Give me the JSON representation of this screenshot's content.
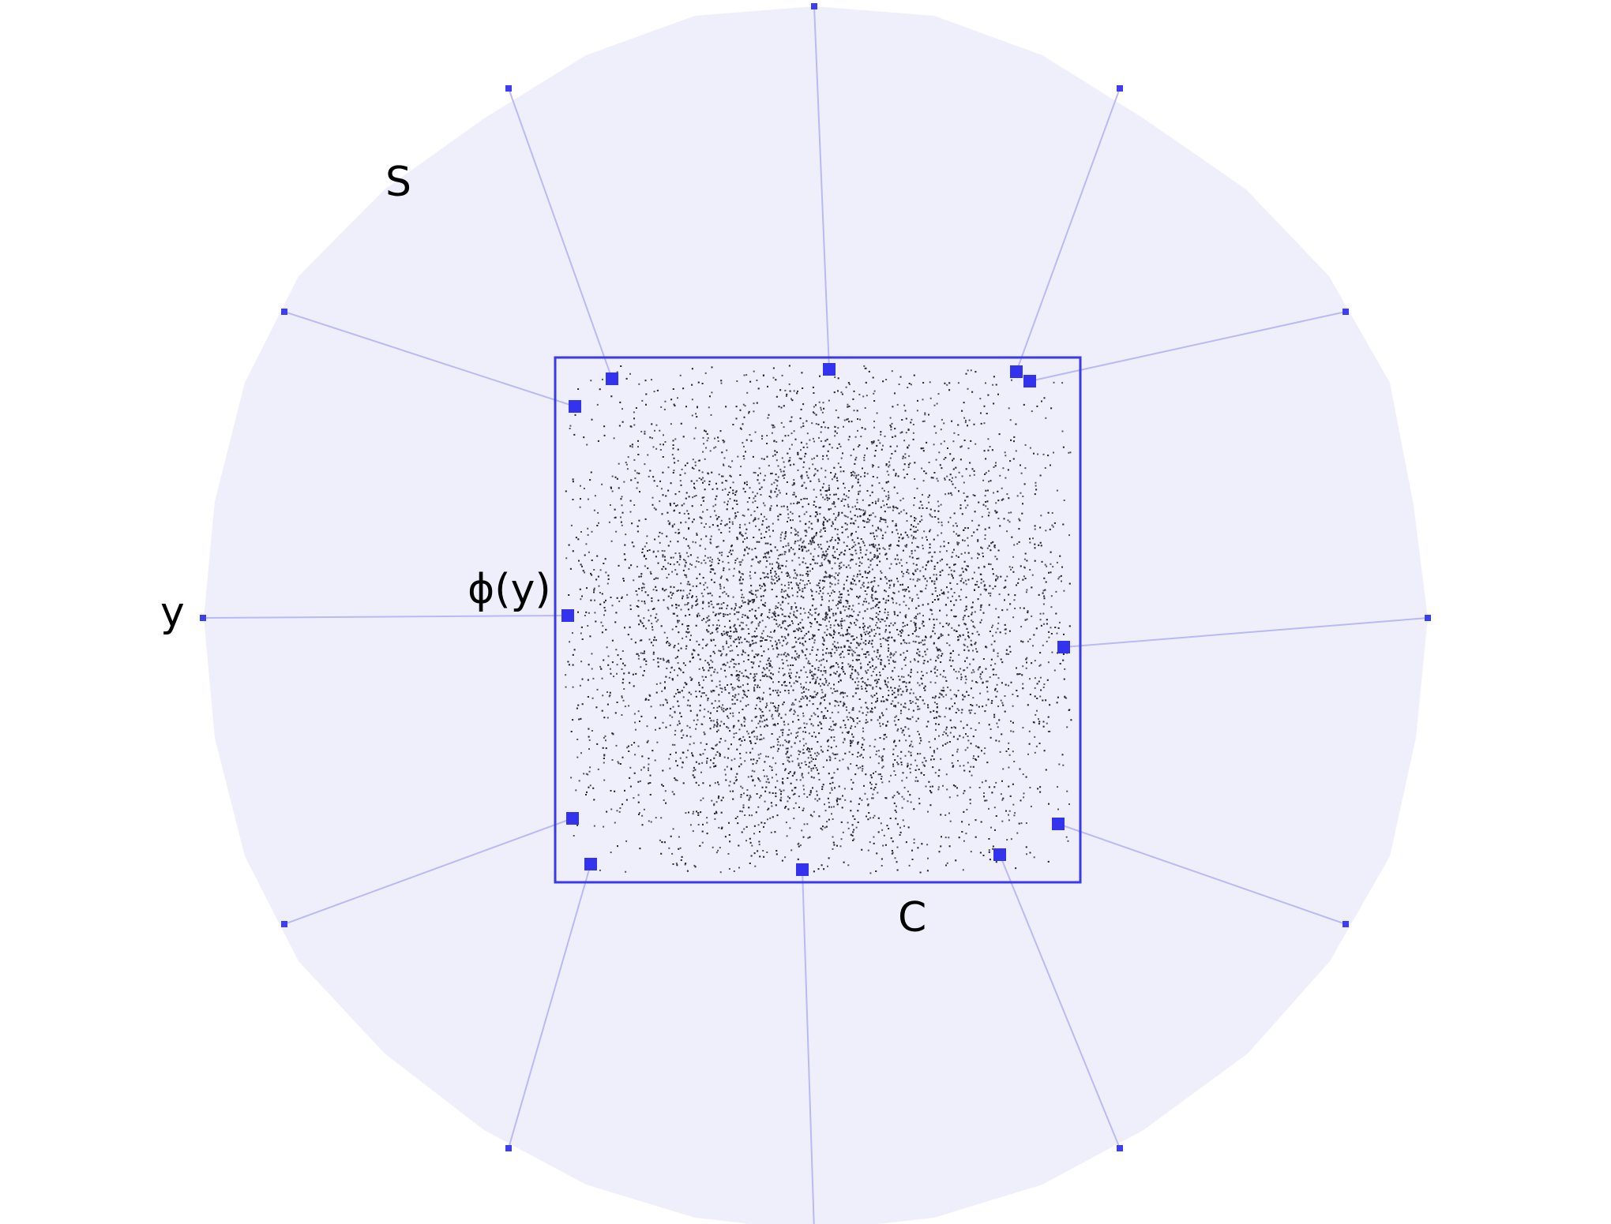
{
  "labels": {
    "sphere": "S",
    "point": "y",
    "projection": "ϕ(y)",
    "set": "C"
  },
  "colors": {
    "disk_fill": "#efeffc",
    "spoke": "#b9b9f5",
    "marker": "#3333ee",
    "box_stroke": "#3a3ae8",
    "scatter": "#1e1e28"
  },
  "spokes": [
    {
      "name": "spoke-top"
    },
    {
      "name": "spoke-top-right"
    },
    {
      "name": "spoke-upper-right"
    },
    {
      "name": "spoke-right"
    },
    {
      "name": "spoke-lower-right"
    },
    {
      "name": "spoke-bottom-right"
    },
    {
      "name": "spoke-bottom"
    },
    {
      "name": "spoke-bottom-left"
    },
    {
      "name": "spoke-lower-left"
    },
    {
      "name": "spoke-left"
    },
    {
      "name": "spoke-upper-left"
    },
    {
      "name": "spoke-top-left"
    }
  ]
}
